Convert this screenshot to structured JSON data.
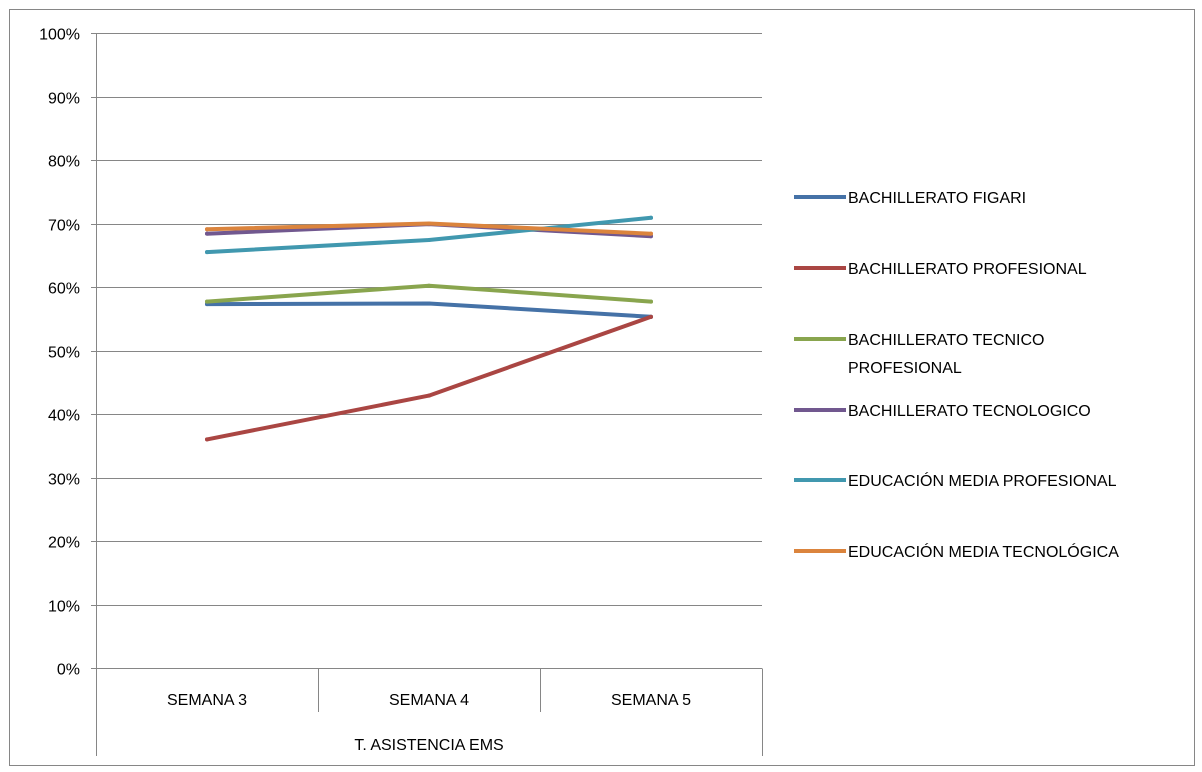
{
  "chart_data": {
    "type": "line",
    "title": "",
    "xlabel": "",
    "ylabel": "",
    "categories": [
      "SEMANA 3",
      "SEMANA 4",
      "SEMANA 5"
    ],
    "group_label": "T. ASISTENCIA EMS",
    "y_ticks": [
      "0%",
      "10%",
      "20%",
      "30%",
      "40%",
      "50%",
      "60%",
      "70%",
      "80%",
      "90%",
      "100%"
    ],
    "ylim": [
      0,
      1
    ],
    "grid": true,
    "legend_position": "right",
    "series": [
      {
        "name": "BACHILLERATO FIGARI",
        "legend_lines": [
          "BACHILLERATO FIGARI"
        ],
        "color": "#4572A7",
        "values": [
          0.573,
          0.574,
          0.553
        ]
      },
      {
        "name": "BACHILLERATO PROFESIONAL",
        "legend_lines": [
          "BACHILLERATO PROFESIONAL"
        ],
        "color": "#AA4643",
        "values": [
          0.36,
          0.429,
          0.553
        ]
      },
      {
        "name": "BACHILLERATO TECNICO PROFESIONAL",
        "legend_lines": [
          "BACHILLERATO TECNICO",
          "PROFESIONAL"
        ],
        "color": "#89A54E",
        "values": [
          0.577,
          0.602,
          0.577
        ]
      },
      {
        "name": "BACHILLERATO TECNOLOGICO",
        "legend_lines": [
          "BACHILLERATO TECNOLOGICO"
        ],
        "color": "#71588F",
        "values": [
          0.684,
          0.699,
          0.68
        ]
      },
      {
        "name": "EDUCACIÓN MEDIA PROFESIONAL",
        "legend_lines": [
          "EDUCACIÓN MEDIA PROFESIONAL"
        ],
        "color": "#4198AF",
        "values": [
          0.655,
          0.674,
          0.709
        ]
      },
      {
        "name": "EDUCACIÓN MEDIA TECNOLÓGICA",
        "legend_lines": [
          "EDUCACIÓN MEDIA TECNOLÓGICA"
        ],
        "color": "#DB843D",
        "values": [
          0.691,
          0.7,
          0.684
        ]
      }
    ]
  }
}
